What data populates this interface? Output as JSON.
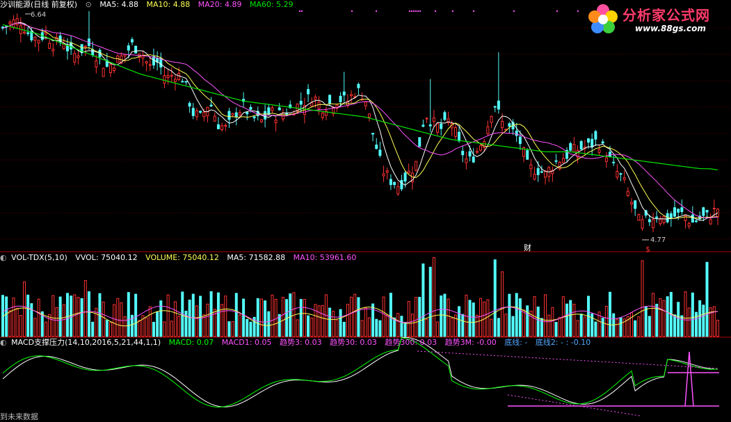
{
  "price_header": {
    "title": "沙训能源(日线 前复权)",
    "ma5": "MA5: 4.88",
    "ma10": "MA10: 4.88",
    "ma20": "MA20: 4.89",
    "ma60": "MA60: 5.29"
  },
  "volume_header": {
    "title": "VOL-TDX(5,10)",
    "vvol": "VVOL: 75040.12",
    "volume": "VOLUME: 75040.12",
    "ma5": "MA5: 71582.88",
    "ma10": "MA10: 53961.60"
  },
  "macd_header": {
    "title": "MACD支撑压力(14,10,2016,5,21,44,1,1)",
    "macd": "MACD: 0.07",
    "macd1": "MACD1: 0.05",
    "trend3": "趋势3: 0.03",
    "trend30": "趋势30: 0.03",
    "trend300": "趋势300: 0.03",
    "trend3m": "趋势3M: -0.00",
    "bottom_line": "底线: -",
    "bottom_line2": "底线2: - : -0.10"
  },
  "labels": {
    "high_price": "6.64",
    "low_price": "4.77",
    "finance_marker": "财",
    "dividend_marker": "$",
    "bottom_note": "到未来数据"
  },
  "watermark": {
    "title": "分析家公式网",
    "url": "www.88gs.com"
  },
  "colors": {
    "background": "#000000",
    "up": "#ff3232",
    "down": "#54fcfc",
    "ma5": "#ffffff",
    "ma10": "#ffff54",
    "ma20": "#ff54ff",
    "ma60": "#00e600",
    "divider": "#b00000",
    "macd": "#ffffff",
    "macd1": "#00ff00",
    "spike": "#ff54ff"
  },
  "chart_data": {
    "type": "candlestick",
    "price_range": [
      4.6,
      6.7
    ],
    "close_trend": [
      6.55,
      6.6,
      6.62,
      6.5,
      6.45,
      6.5,
      6.4,
      6.45,
      6.3,
      6.35,
      6.4,
      6.3,
      6.2,
      6.25,
      6.3,
      6.4,
      6.35,
      6.2,
      6.25,
      6.1,
      6.15,
      6.1,
      5.8,
      5.75,
      5.9,
      5.7,
      5.65,
      5.8,
      5.85,
      5.75,
      5.72,
      5.8,
      5.78,
      5.82,
      5.85,
      5.9,
      5.95,
      5.85,
      5.88,
      5.92,
      5.9,
      6.0,
      5.95,
      5.6,
      5.3,
      5.2,
      5.15,
      5.25,
      5.35,
      5.8,
      5.7,
      5.65,
      5.75,
      5.5,
      5.35,
      5.45,
      5.6,
      5.9,
      5.7,
      5.65,
      5.55,
      5.3,
      5.3,
      5.25,
      5.35,
      5.4,
      5.45,
      5.48,
      5.5,
      5.55,
      5.45,
      5.3,
      5.2,
      5.0,
      4.8,
      4.85,
      4.9,
      4.85,
      4.88,
      4.9,
      4.82,
      4.86,
      4.88,
      4.95
    ],
    "ma60_trend": [
      6.58,
      6.56,
      6.54,
      6.52,
      6.5,
      6.47,
      6.44,
      6.41,
      6.38,
      6.35,
      6.32,
      6.29,
      6.26,
      6.23,
      6.2,
      6.17,
      6.14,
      6.12,
      6.1,
      6.08,
      6.06,
      6.04,
      6.02,
      6.0,
      5.98,
      5.96,
      5.94,
      5.92,
      5.9,
      5.89,
      5.88,
      5.87,
      5.86,
      5.85,
      5.84,
      5.83,
      5.82,
      5.81,
      5.8,
      5.79,
      5.78,
      5.77,
      5.76,
      5.74,
      5.72,
      5.7,
      5.68,
      5.66,
      5.64,
      5.62,
      5.6,
      5.58,
      5.56,
      5.55,
      5.54,
      5.53,
      5.52,
      5.51,
      5.5,
      5.49,
      5.48,
      5.47,
      5.46,
      5.45,
      5.45,
      5.45,
      5.45,
      5.44,
      5.43,
      5.42,
      5.41,
      5.4,
      5.39,
      5.38,
      5.37,
      5.36,
      5.35,
      5.34,
      5.33,
      5.32,
      5.31,
      5.3,
      5.3,
      5.29
    ]
  }
}
